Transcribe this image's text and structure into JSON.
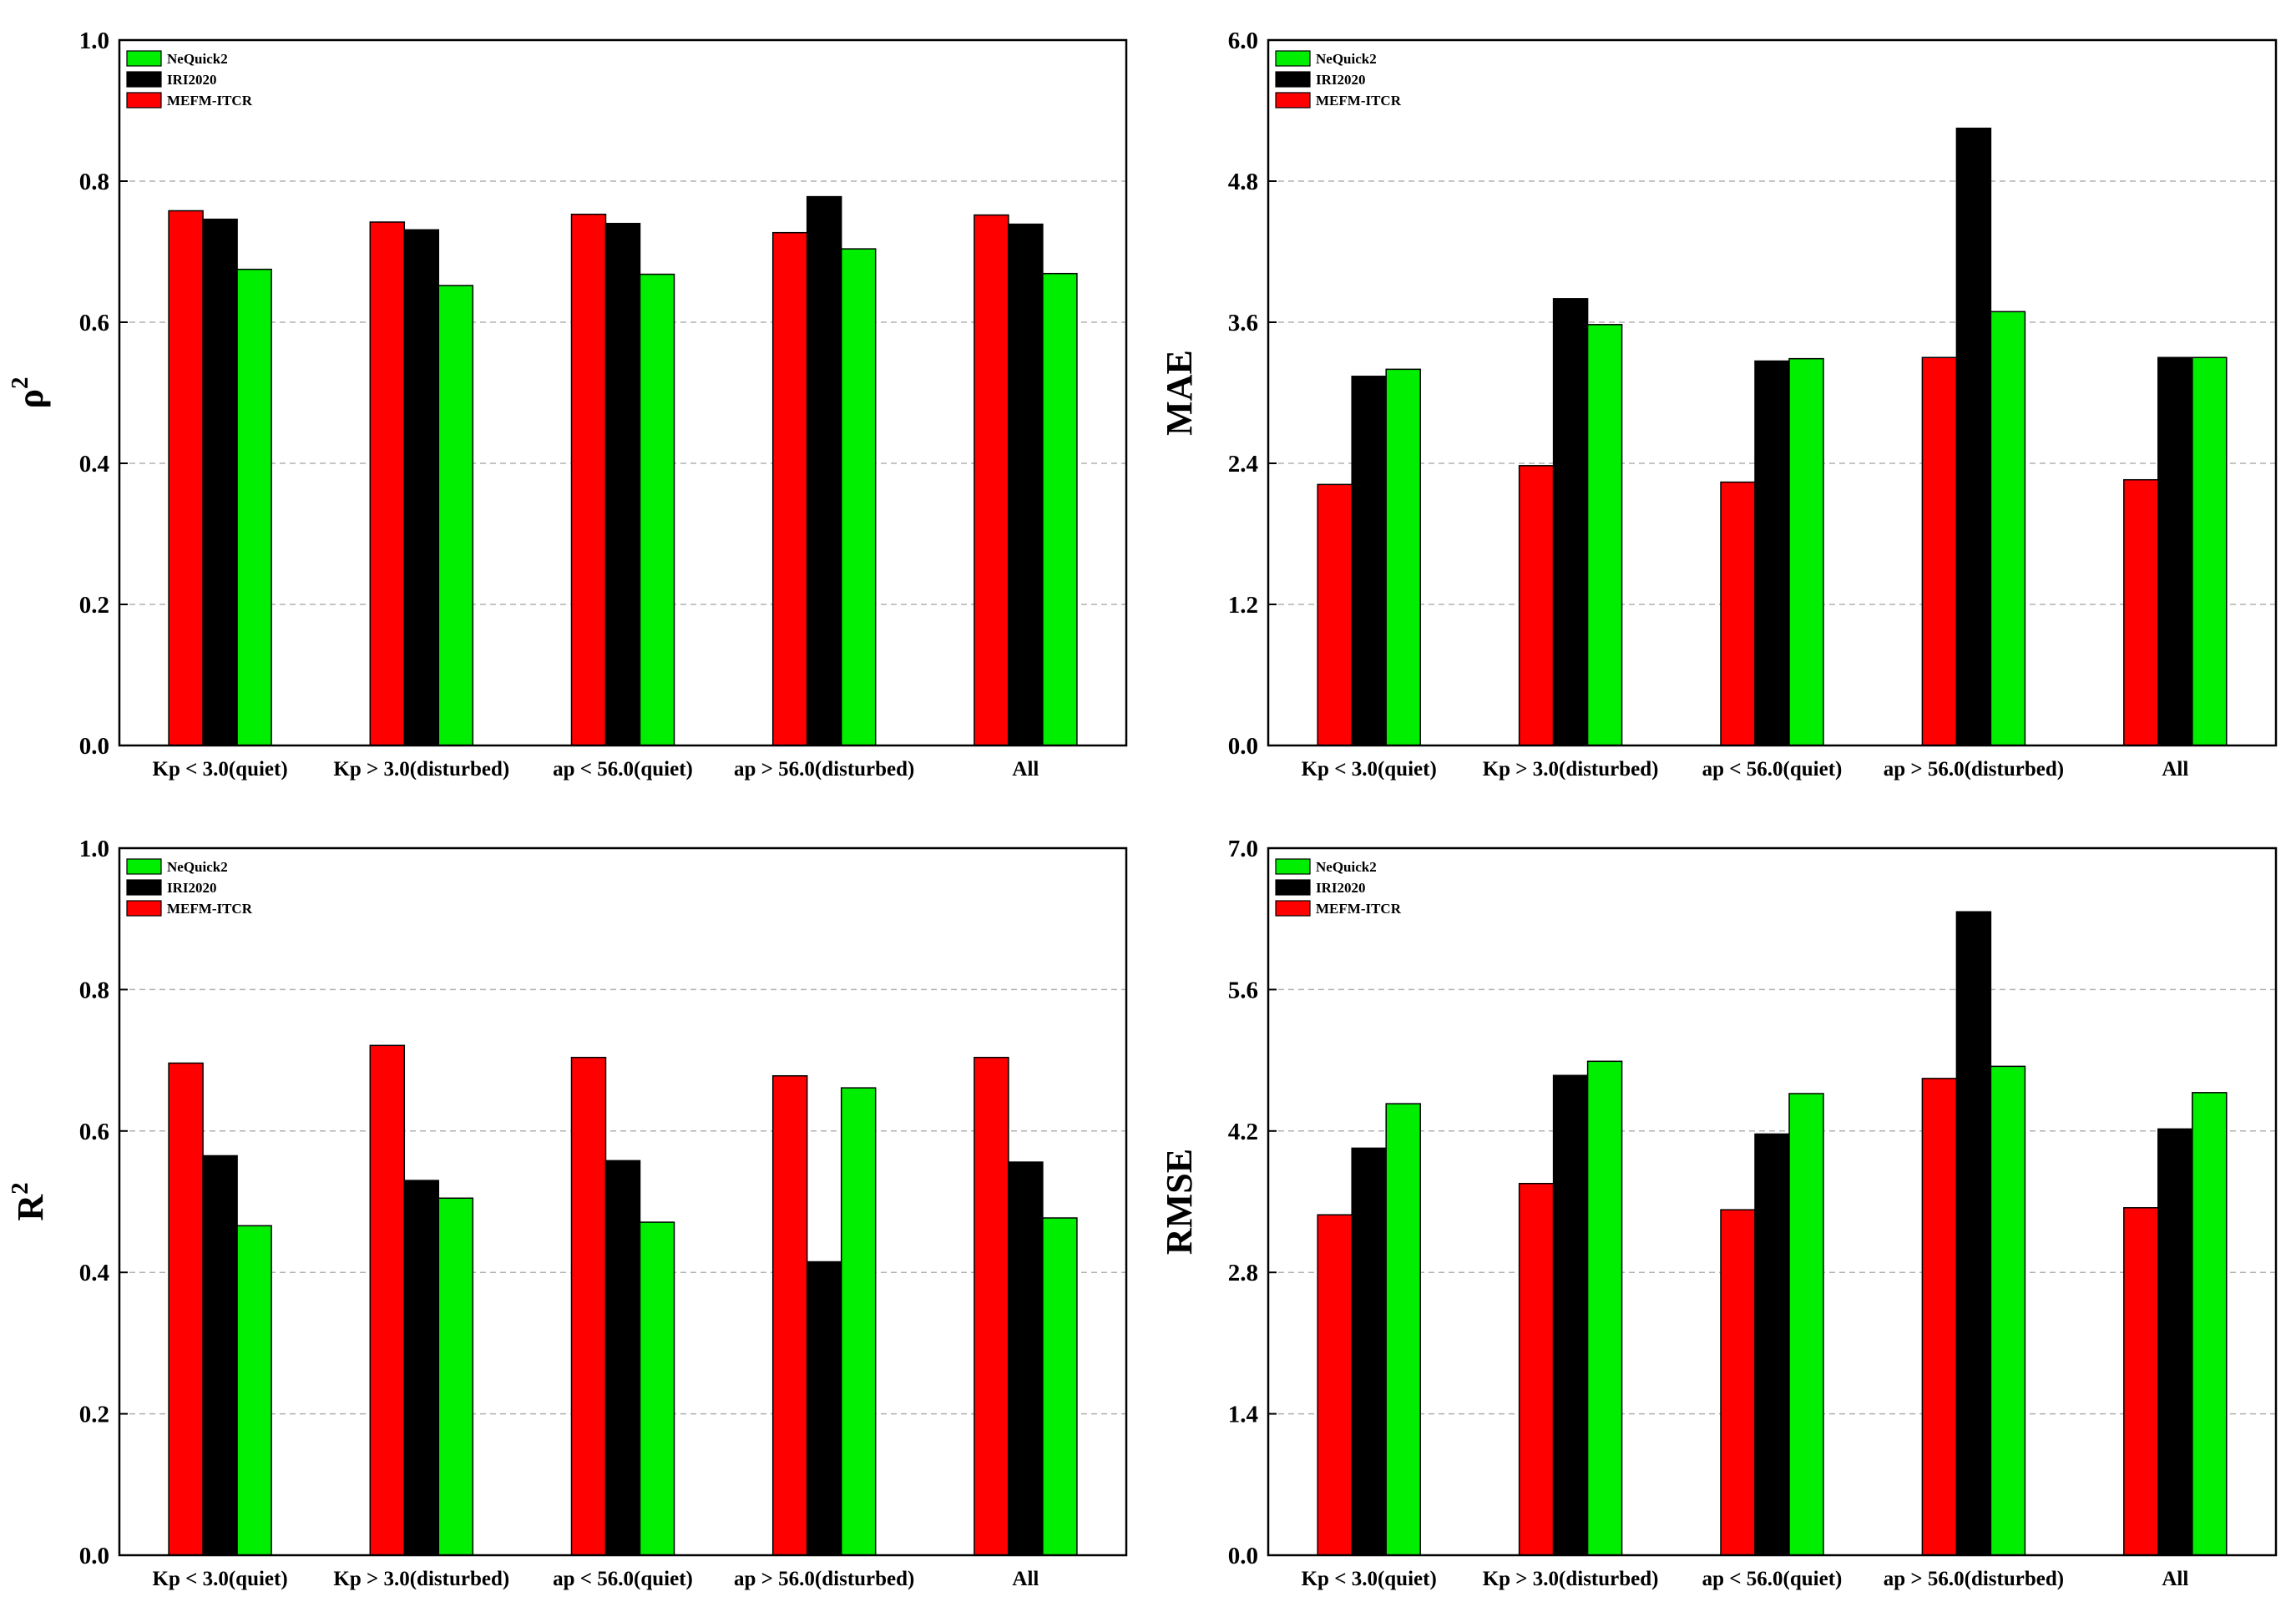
{
  "colors": {
    "MEFM-ITCR": "#ff0000",
    "IRI2020": "#000000",
    "NeQuick2": "#00ee00"
  },
  "chart_data": [
    {
      "type": "bar",
      "ylabel": "ρ",
      "ylabel_sup": "2",
      "categories": [
        "Kp < 3.0(quiet)",
        "Kp > 3.0(disturbed)",
        "ap < 56.0(quiet)",
        "ap > 56.0(disturbed)",
        "All"
      ],
      "series": [
        {
          "name": "MEFM-ITCR",
          "values": [
            0.758,
            0.742,
            0.753,
            0.727,
            0.752
          ]
        },
        {
          "name": "IRI2020",
          "values": [
            0.746,
            0.731,
            0.74,
            0.778,
            0.739
          ]
        },
        {
          "name": "NeQuick2",
          "values": [
            0.675,
            0.652,
            0.668,
            0.704,
            0.669
          ]
        }
      ],
      "legend": [
        "NeQuick2",
        "IRI2020",
        "MEFM-ITCR"
      ],
      "ylim": [
        0,
        1.0
      ],
      "yticks": [
        "0.0",
        "0.2",
        "0.4",
        "0.6",
        "0.8",
        "1.0"
      ]
    },
    {
      "type": "bar",
      "ylabel": "MAE",
      "ylabel_sup": "",
      "categories": [
        "Kp < 3.0(quiet)",
        "Kp > 3.0(disturbed)",
        "ap < 56.0(quiet)",
        "ap > 56.0(disturbed)",
        "All"
      ],
      "series": [
        {
          "name": "MEFM-ITCR",
          "values": [
            2.22,
            2.38,
            2.24,
            3.3,
            2.26
          ]
        },
        {
          "name": "IRI2020",
          "values": [
            3.14,
            3.8,
            3.27,
            5.25,
            3.3
          ]
        },
        {
          "name": "NeQuick2",
          "values": [
            3.2,
            3.58,
            3.29,
            3.69,
            3.3
          ]
        }
      ],
      "legend": [
        "NeQuick2",
        "IRI2020",
        "MEFM-ITCR"
      ],
      "ylim": [
        0,
        6.0
      ],
      "yticks": [
        "0.0",
        "1.2",
        "2.4",
        "3.6",
        "4.8",
        "6.0"
      ]
    },
    {
      "type": "bar",
      "ylabel": "R",
      "ylabel_sup": "2",
      "categories": [
        "Kp < 3.0(quiet)",
        "Kp > 3.0(disturbed)",
        "ap < 56.0(quiet)",
        "ap > 56.0(disturbed)",
        "All"
      ],
      "series": [
        {
          "name": "MEFM-ITCR",
          "values": [
            0.696,
            0.721,
            0.704,
            0.678,
            0.704
          ]
        },
        {
          "name": "IRI2020",
          "values": [
            0.565,
            0.53,
            0.558,
            0.415,
            0.556
          ]
        },
        {
          "name": "NeQuick2",
          "values": [
            0.466,
            0.505,
            0.471,
            0.661,
            0.477
          ]
        }
      ],
      "legend": [
        "NeQuick2",
        "IRI2020",
        "MEFM-ITCR"
      ],
      "ylim": [
        0,
        1.0
      ],
      "yticks": [
        "0.0",
        "0.2",
        "0.4",
        "0.6",
        "0.8",
        "1.0"
      ]
    },
    {
      "type": "bar",
      "ylabel": "RMSE",
      "ylabel_sup": "",
      "categories": [
        "Kp < 3.0(quiet)",
        "Kp > 3.0(disturbed)",
        "ap < 56.0(quiet)",
        "ap > 56.0(disturbed)",
        "All"
      ],
      "series": [
        {
          "name": "MEFM-ITCR",
          "values": [
            3.37,
            3.68,
            3.42,
            4.72,
            3.44
          ]
        },
        {
          "name": "IRI2020",
          "values": [
            4.03,
            4.75,
            4.17,
            6.37,
            4.22
          ]
        },
        {
          "name": "NeQuick2",
          "values": [
            4.47,
            4.89,
            4.57,
            4.84,
            4.58
          ]
        }
      ],
      "legend": [
        "NeQuick2",
        "IRI2020",
        "MEFM-ITCR"
      ],
      "ylim": [
        0,
        7.0
      ],
      "yticks": [
        "0.0",
        "1.4",
        "2.8",
        "4.2",
        "5.6",
        "7.0"
      ]
    }
  ]
}
